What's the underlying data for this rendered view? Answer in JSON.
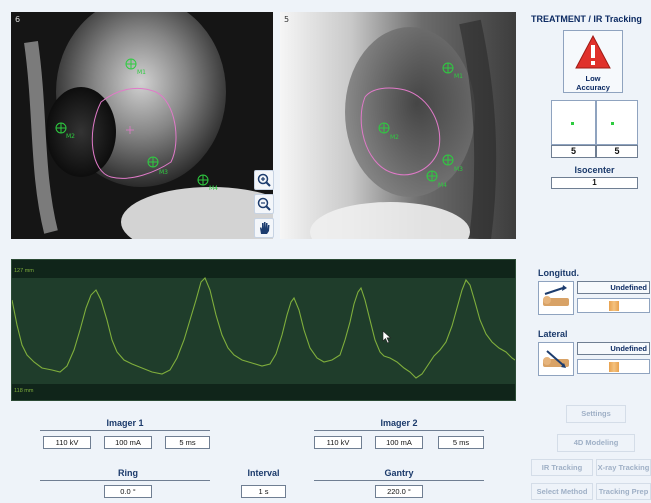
{
  "header": {
    "title": "TREATMENT / IR Tracking"
  },
  "alert": {
    "label_line1": "Low",
    "label_line2": "Accuracy",
    "color": "#e0312b"
  },
  "imager_views": [
    {
      "number": "6",
      "markers": [
        "M1",
        "M2",
        "M3",
        "M4"
      ]
    },
    {
      "number": "5",
      "markers": [
        "M1",
        "M2",
        "M3",
        "M4"
      ]
    }
  ],
  "view_tools": {
    "zoom_in": "zoom-in-icon",
    "zoom_out": "zoom-out-icon",
    "pan": "hand-icon"
  },
  "mini_views": {
    "left_value": "5",
    "right_value": "5"
  },
  "isocenter": {
    "label": "Isocenter",
    "value": "1"
  },
  "breathing_signal": {
    "top_label": "127 mm",
    "bottom_label": "118 mm",
    "line_color": "#7fae3c"
  },
  "longitudinal": {
    "label": "Longitud.",
    "status": "Undefined"
  },
  "lateral": {
    "label": "Lateral",
    "status": "Undefined"
  },
  "imager1": {
    "title": "Imager 1",
    "kv": "110 kV",
    "ma": "100 mA",
    "ms": "5 ms"
  },
  "imager2": {
    "title": "Imager 2",
    "kv": "110 kV",
    "ma": "100 mA",
    "ms": "5 ms"
  },
  "ring": {
    "label": "Ring",
    "value": "0.0 °"
  },
  "interval": {
    "label": "Interval",
    "value": "1 s"
  },
  "gantry": {
    "label": "Gantry",
    "value": "220.0 °"
  },
  "buttons": {
    "settings": "Settings",
    "modeling": "4D Modeling",
    "ir_tracking": "IR Tracking",
    "xray_tracking": "X-ray Tracking",
    "select_method": "Select Method",
    "tracking_prep": "Tracking Prep"
  }
}
